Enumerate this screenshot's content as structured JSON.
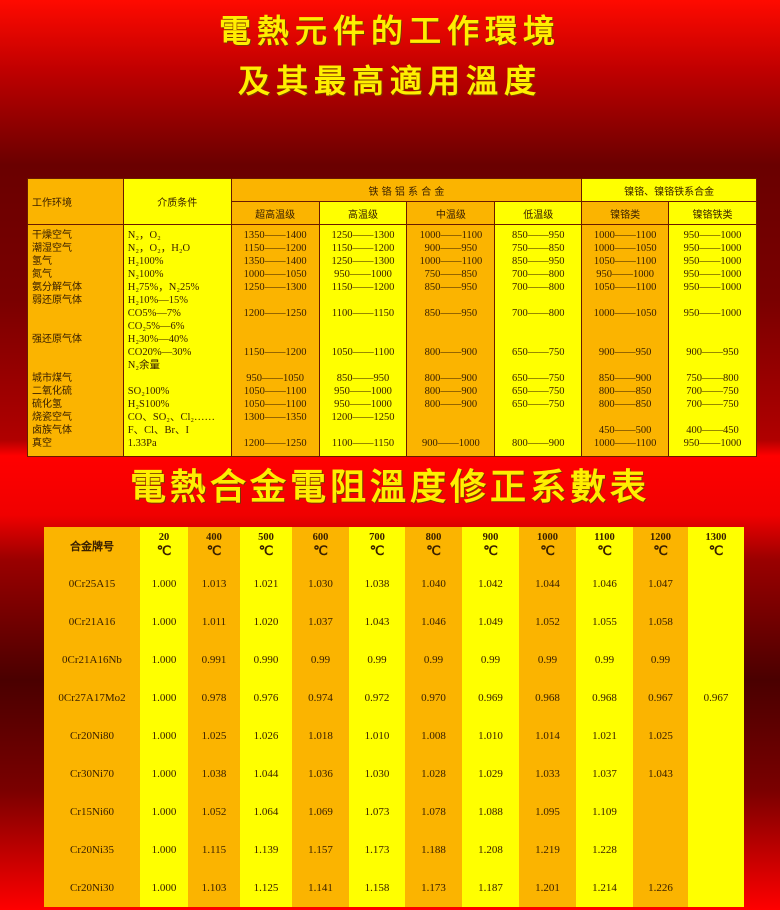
{
  "title": {
    "line1": "電熱元件的工作環境",
    "line2": "及其最高適用溫度",
    "line3": "電熱合金電阻溫度修正系數表"
  },
  "colors": {
    "orange": "#fbb400",
    "yellow": "#ffff00",
    "title": "#ffee00",
    "background": "#d00000"
  },
  "env_table": {
    "headers": {
      "env": "工作环境",
      "medium": "介质条件",
      "fecral": "铁 铬 铝 系 合 金",
      "nicr": "镍铬、镍铬铁系合金",
      "sub": [
        "超高温级",
        "高温级",
        "中温级",
        "低温级",
        "镍铬类",
        "镍铬铁类"
      ]
    },
    "lines": [
      {
        "env": "干燥空气",
        "medium": "N₂，O₂",
        "v": [
          "1350——1400",
          "1250——1300",
          "1000——1100",
          "850——950",
          "1000——1100",
          "950——1000"
        ]
      },
      {
        "env": "潮湿空气",
        "medium": "N₂，O₂，H₂O",
        "v": [
          "1150——1200",
          "1150——1200",
          "900——950",
          "750——850",
          "1000——1050",
          "950——1000"
        ]
      },
      {
        "env": "氢气",
        "medium": "H₂100%",
        "v": [
          "1350——1400",
          "1250——1300",
          "1000——1100",
          "850——950",
          "1050——1100",
          "950——1000"
        ]
      },
      {
        "env": "氮气",
        "medium": "N₂100%",
        "v": [
          "1000——1050",
          "950——1000",
          "750——850",
          "700——800",
          "950——1000",
          "950——1000"
        ]
      },
      {
        "env": "氨分解气体",
        "medium": "H₂75%，N₂25%",
        "v": [
          "1250——1300",
          "1150——1200",
          "850——950",
          "700——800",
          "1050——1100",
          "950——1000"
        ]
      },
      {
        "env": "弱还原气体",
        "medium": "H₂10%—15%",
        "v": [
          "",
          "",
          "",
          "",
          "",
          ""
        ]
      },
      {
        "env": "",
        "medium": "CO5%—7%",
        "v": [
          "1200——1250",
          "1100——1150",
          "850——950",
          "700——800",
          "1000——1050",
          "950——1000"
        ]
      },
      {
        "env": "",
        "medium": "CO₂5%—6%",
        "v": [
          "",
          "",
          "",
          "",
          "",
          ""
        ]
      },
      {
        "env": "强还原气体",
        "medium": "H₂30%—40%",
        "v": [
          "",
          "",
          "",
          "",
          "",
          ""
        ]
      },
      {
        "env": "",
        "medium": "CO20%—30%",
        "v": [
          "1150——1200",
          "1050——1100",
          "800——900",
          "650——750",
          "900——950",
          "900——950"
        ]
      },
      {
        "env": "",
        "medium": "N₂余量",
        "v": [
          "",
          "",
          "",
          "",
          "",
          ""
        ]
      },
      {
        "env": "城市煤气",
        "medium": "",
        "v": [
          "950——1050",
          "850——950",
          "800——900",
          "650——750",
          "850——900",
          "750——800"
        ]
      },
      {
        "env": "二氧化硫",
        "medium": "SO₂100%",
        "v": [
          "1050——1100",
          "950——1000",
          "800——900",
          "650——750",
          "800——850",
          "700——750"
        ]
      },
      {
        "env": "硫化氢",
        "medium": "H₂S100%",
        "v": [
          "1050——1100",
          "950——1000",
          "800——900",
          "650——750",
          "800——850",
          "700——750"
        ]
      },
      {
        "env": "烧瓷空气",
        "medium": "CO、SO₂、Cl₂……",
        "v": [
          "1300——1350",
          "1200——1250",
          "",
          "",
          "",
          ""
        ]
      },
      {
        "env": "卤族气体",
        "medium": "F、Cl、Br、I",
        "v": [
          "",
          "",
          "",
          "",
          "450——500",
          "400——450"
        ]
      },
      {
        "env": "真空",
        "medium": "1.33Pa",
        "v": [
          "1200——1250",
          "1100——1150",
          "900——1000",
          "800——900",
          "1000——1100",
          "950——1000"
        ]
      }
    ]
  },
  "coef_table": {
    "header_label": "合金牌号",
    "unit": "℃",
    "temps": [
      "20",
      "400",
      "500",
      "600",
      "700",
      "800",
      "900",
      "1000",
      "1100",
      "1200",
      "1300"
    ],
    "rows": [
      {
        "alloy": "0Cr25A15",
        "v": [
          "1.000",
          "1.013",
          "1.021",
          "1.030",
          "1.038",
          "1.040",
          "1.042",
          "1.044",
          "1.046",
          "1.047",
          ""
        ]
      },
      {
        "alloy": "0Cr21A16",
        "v": [
          "1.000",
          "1.011",
          "1.020",
          "1.037",
          "1.043",
          "1.046",
          "1.049",
          "1.052",
          "1.055",
          "1.058",
          ""
        ]
      },
      {
        "alloy": "0Cr21A16Nb",
        "v": [
          "1.000",
          "0.991",
          "0.990",
          "0.99",
          "0.99",
          "0.99",
          "0.99",
          "0.99",
          "0.99",
          "0.99",
          ""
        ]
      },
      {
        "alloy": "0Cr27A17Mo2",
        "v": [
          "1.000",
          "0.978",
          "0.976",
          "0.974",
          "0.972",
          "0.970",
          "0.969",
          "0.968",
          "0.968",
          "0.967",
          "0.967"
        ]
      },
      {
        "alloy": "Cr20Ni80",
        "v": [
          "1.000",
          "1.025",
          "1.026",
          "1.018",
          "1.010",
          "1.008",
          "1.010",
          "1.014",
          "1.021",
          "1.025",
          ""
        ]
      },
      {
        "alloy": "Cr30Ni70",
        "v": [
          "1.000",
          "1.038",
          "1.044",
          "1.036",
          "1.030",
          "1.028",
          "1.029",
          "1.033",
          "1.037",
          "1.043",
          ""
        ]
      },
      {
        "alloy": "Cr15Ni60",
        "v": [
          "1.000",
          "1.052",
          "1.064",
          "1.069",
          "1.073",
          "1.078",
          "1.088",
          "1.095",
          "1.109",
          "",
          ""
        ]
      },
      {
        "alloy": "Cr20Ni35",
        "v": [
          "1.000",
          "1.115",
          "1.139",
          "1.157",
          "1.173",
          "1.188",
          "1.208",
          "1.219",
          "1.228",
          "",
          ""
        ]
      },
      {
        "alloy": "Cr20Ni30",
        "v": [
          "1.000",
          "1.103",
          "1.125",
          "1.141",
          "1.158",
          "1.173",
          "1.187",
          "1.201",
          "1.214",
          "1.226",
          ""
        ]
      }
    ]
  }
}
